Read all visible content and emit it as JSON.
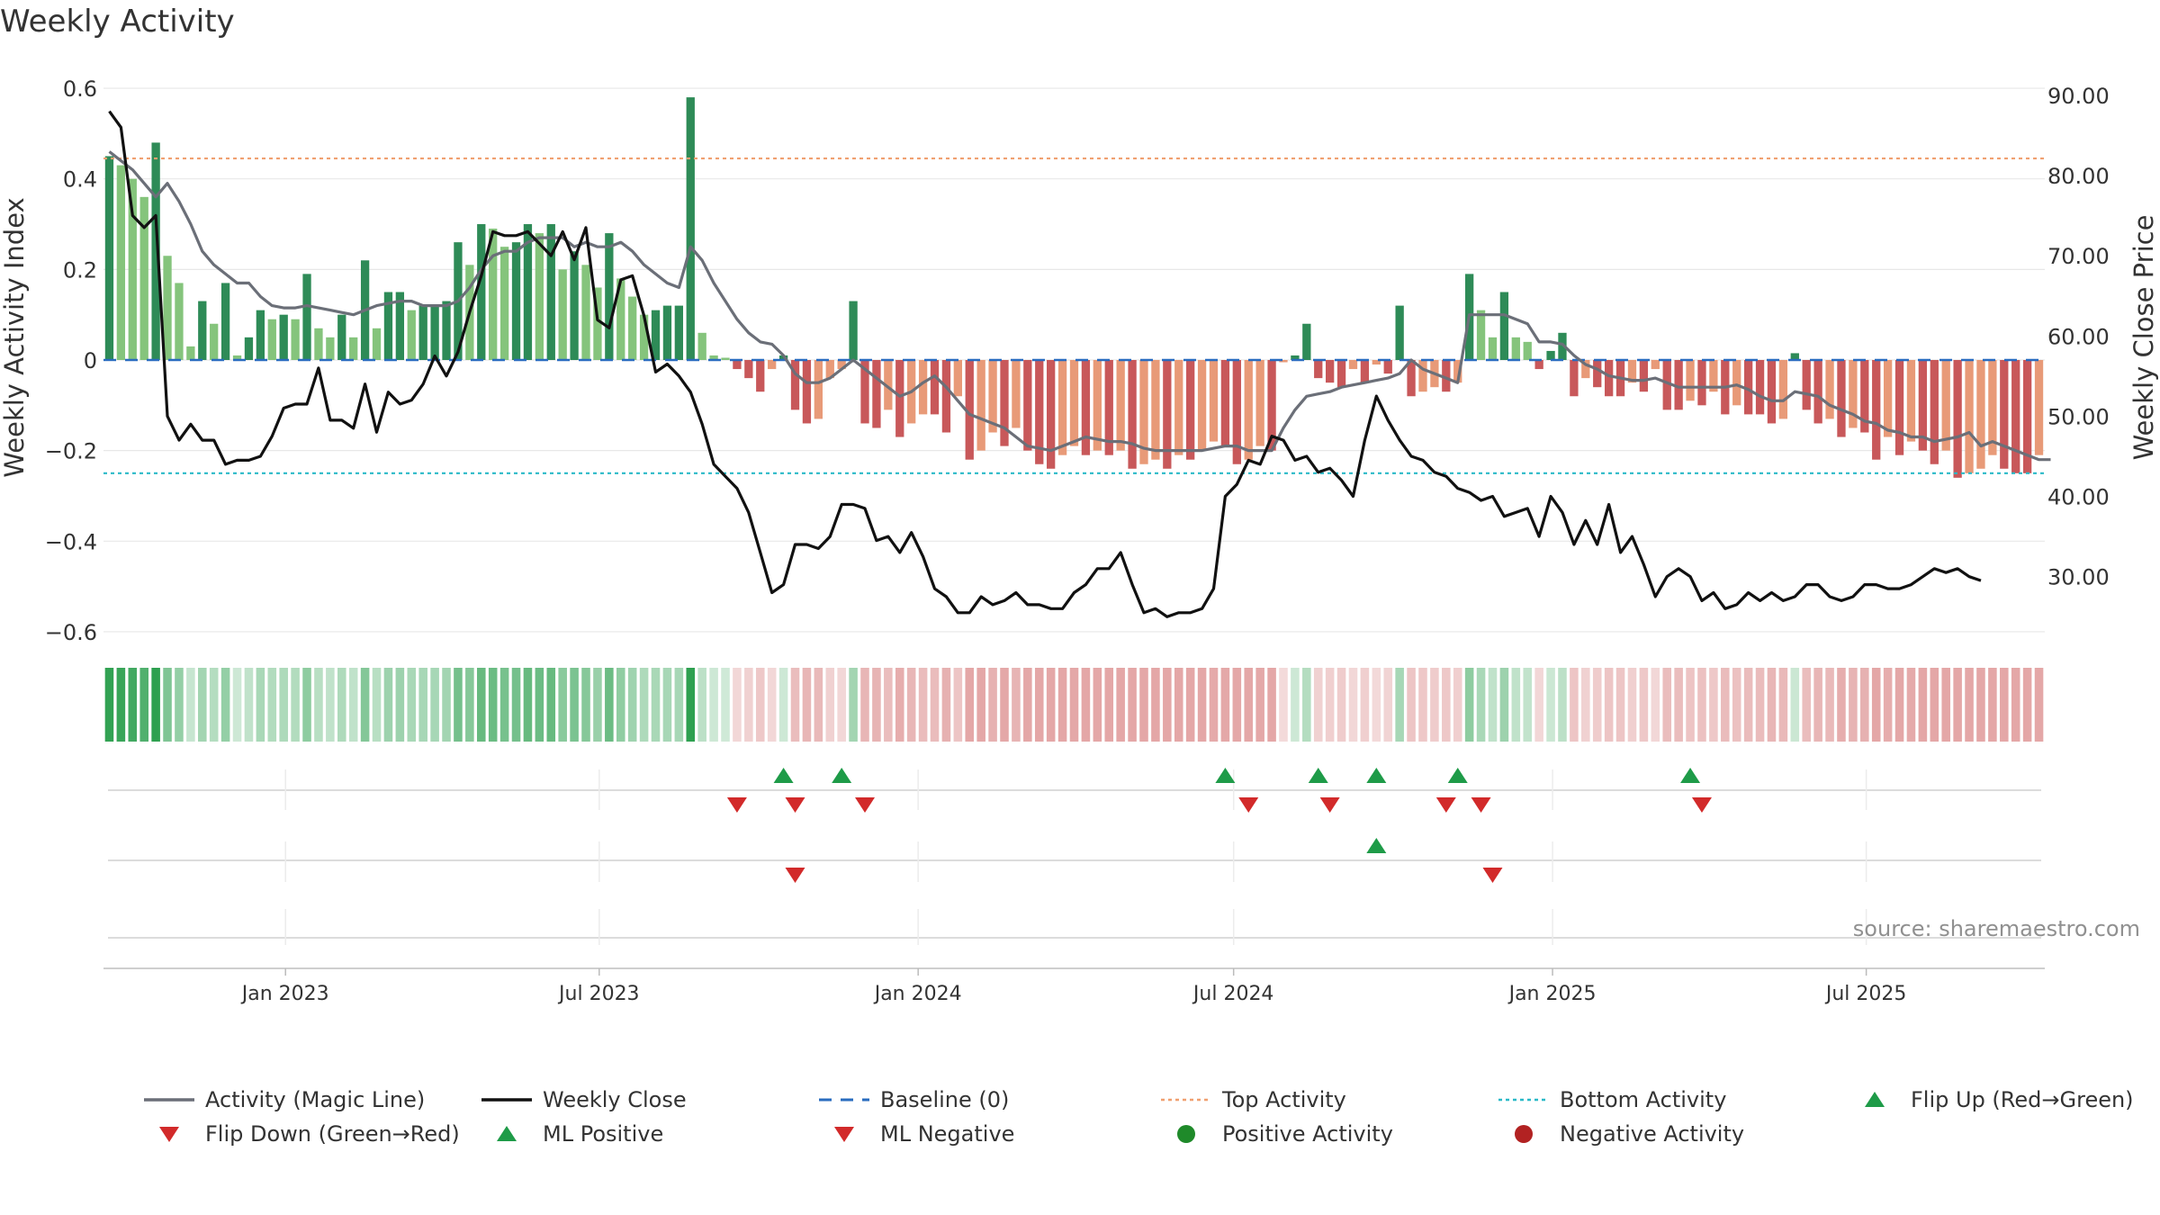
{
  "header": {
    "title": "Weekly Activity"
  },
  "colors": {
    "pos_strong": "#2e8b57",
    "pos_light": "#85c47c",
    "neg_strong": "#c8585a",
    "neg_light": "#e89a78",
    "magic_line": "#6b6f78",
    "close_line": "#111111",
    "baseline": "#2a6cbf",
    "top": "#f0a070",
    "bottom": "#2ab9c8",
    "up_marker": "#1e9b48",
    "down_marker": "#d22a2a"
  },
  "chart_data": {
    "type": "bar",
    "title": "Weekly Activity",
    "ylabel": "Weekly Activity Index",
    "y2label": "Weekly Close Price",
    "ylim": [
      -0.62,
      0.62
    ],
    "y2lim": [
      22,
      92
    ],
    "y_ticks": [
      0.6,
      0.4,
      0.2,
      0,
      -0.2,
      -0.4,
      -0.6
    ],
    "y_tick_labels": [
      "0.6",
      "0.4",
      "0.2",
      "0",
      "−0.2",
      "−0.4",
      "−0.6"
    ],
    "y2_ticks": [
      90,
      80,
      70,
      60,
      50,
      40,
      30
    ],
    "y2_tick_labels": [
      "90.00",
      "80.00",
      "70.00",
      "60.00",
      "50.00",
      "40.00",
      "30.00"
    ],
    "x_start": "2022-09-18",
    "x_end": "2025-10-12",
    "x_tick_dates": [
      "2023-01-01",
      "2023-07-01",
      "2024-01-01",
      "2024-07-01",
      "2025-01-01",
      "2025-07-01"
    ],
    "x_tick_labels": [
      "Jan 2023",
      "Jul 2023",
      "Jan 2024",
      "Jul 2024",
      "Jan 2025",
      "Jul 2025"
    ],
    "top_activity": 0.445,
    "bottom_activity": -0.25,
    "activity": [
      0.45,
      0.43,
      0.4,
      0.36,
      0.48,
      0.23,
      0.17,
      0.03,
      0.13,
      0.08,
      0.17,
      0.01,
      0.05,
      0.11,
      0.09,
      0.1,
      0.09,
      0.19,
      0.07,
      0.05,
      0.1,
      0.05,
      0.22,
      0.07,
      0.15,
      0.15,
      0.11,
      0.12,
      0.12,
      0.13,
      0.26,
      0.21,
      0.3,
      0.29,
      0.25,
      0.26,
      0.3,
      0.28,
      0.3,
      0.2,
      0.24,
      0.21,
      0.16,
      0.28,
      0.18,
      0.14,
      0.1,
      0.11,
      0.12,
      0.12,
      0.58,
      0.06,
      0.01,
      0.005,
      -0.02,
      -0.04,
      -0.07,
      -0.02,
      0.01,
      -0.11,
      -0.14,
      -0.13,
      -0.04,
      -0.02,
      0.13,
      -0.14,
      -0.15,
      -0.11,
      -0.17,
      -0.14,
      -0.12,
      -0.12,
      -0.16,
      -0.08,
      -0.22,
      -0.2,
      -0.16,
      -0.19,
      -0.15,
      -0.2,
      -0.23,
      -0.24,
      -0.21,
      -0.19,
      -0.21,
      -0.2,
      -0.21,
      -0.2,
      -0.24,
      -0.23,
      -0.22,
      -0.24,
      -0.21,
      -0.22,
      -0.2,
      -0.18,
      -0.19,
      -0.23,
      -0.22,
      -0.19,
      -0.2,
      -0.005,
      0.01,
      0.08,
      -0.04,
      -0.05,
      -0.06,
      -0.02,
      -0.05,
      -0.01,
      -0.03,
      0.12,
      -0.08,
      -0.07,
      -0.06,
      -0.07,
      -0.05,
      0.19,
      0.11,
      0.05,
      0.15,
      0.05,
      0.04,
      -0.02,
      0.02,
      0.06,
      -0.08,
      -0.04,
      -0.06,
      -0.08,
      -0.08,
      -0.05,
      -0.07,
      -0.02,
      -0.11,
      -0.11,
      -0.09,
      -0.1,
      -0.07,
      -0.12,
      -0.1,
      -0.12,
      -0.12,
      -0.14,
      -0.13,
      0.015,
      -0.11,
      -0.14,
      -0.13,
      -0.17,
      -0.15,
      -0.16,
      -0.22,
      -0.17,
      -0.21,
      -0.18,
      -0.2,
      -0.23,
      -0.2,
      -0.26,
      -0.25,
      -0.24,
      -0.21,
      -0.24,
      -0.25,
      -0.25,
      -0.21
    ],
    "magic_line": [
      0.46,
      0.44,
      0.42,
      0.39,
      0.36,
      0.39,
      0.35,
      0.3,
      0.24,
      0.21,
      0.19,
      0.17,
      0.17,
      0.14,
      0.12,
      0.115,
      0.115,
      0.12,
      0.115,
      0.11,
      0.105,
      0.1,
      0.11,
      0.12,
      0.125,
      0.13,
      0.13,
      0.12,
      0.12,
      0.12,
      0.13,
      0.16,
      0.2,
      0.23,
      0.24,
      0.24,
      0.26,
      0.27,
      0.27,
      0.27,
      0.25,
      0.26,
      0.25,
      0.25,
      0.26,
      0.24,
      0.21,
      0.19,
      0.17,
      0.16,
      0.25,
      0.22,
      0.17,
      0.13,
      0.09,
      0.06,
      0.04,
      0.035,
      0.01,
      -0.03,
      -0.05,
      -0.05,
      -0.04,
      -0.02,
      0.0,
      -0.02,
      -0.04,
      -0.06,
      -0.08,
      -0.07,
      -0.05,
      -0.035,
      -0.06,
      -0.09,
      -0.12,
      -0.13,
      -0.14,
      -0.15,
      -0.17,
      -0.19,
      -0.195,
      -0.2,
      -0.19,
      -0.18,
      -0.17,
      -0.175,
      -0.18,
      -0.18,
      -0.185,
      -0.195,
      -0.2,
      -0.2,
      -0.2,
      -0.2,
      -0.2,
      -0.195,
      -0.19,
      -0.19,
      -0.2,
      -0.2,
      -0.2,
      -0.15,
      -0.11,
      -0.08,
      -0.075,
      -0.07,
      -0.06,
      -0.055,
      -0.05,
      -0.045,
      -0.04,
      -0.03,
      0.0,
      -0.02,
      -0.03,
      -0.04,
      -0.05,
      0.1,
      0.1,
      0.1,
      0.1,
      0.09,
      0.08,
      0.04,
      0.04,
      0.035,
      0.01,
      -0.01,
      -0.02,
      -0.035,
      -0.04,
      -0.045,
      -0.045,
      -0.04,
      -0.05,
      -0.06,
      -0.06,
      -0.06,
      -0.06,
      -0.06,
      -0.055,
      -0.065,
      -0.08,
      -0.09,
      -0.09,
      -0.07,
      -0.075,
      -0.08,
      -0.1,
      -0.11,
      -0.12,
      -0.135,
      -0.14,
      -0.155,
      -0.16,
      -0.17,
      -0.17,
      -0.18,
      -0.175,
      -0.17,
      -0.16,
      -0.19,
      -0.18,
      -0.19,
      -0.2,
      -0.21,
      -0.22,
      -0.22
    ],
    "weekly_close": [
      88,
      86,
      75,
      73.5,
      75,
      50,
      47,
      49,
      47,
      47,
      44,
      44.5,
      44.5,
      45,
      47.5,
      51,
      51.5,
      51.5,
      56,
      49.5,
      49.5,
      48.5,
      54,
      48,
      53,
      51.5,
      52,
      54,
      57.5,
      55,
      58,
      63,
      67.5,
      73,
      72.5,
      72.5,
      73,
      71.5,
      70,
      73,
      69.5,
      73.5,
      62,
      61,
      67,
      67.5,
      62.5,
      55.5,
      56.5,
      55,
      53,
      49,
      44,
      42.5,
      41,
      38,
      33,
      28,
      29,
      34,
      34,
      33.5,
      35,
      39,
      39,
      38.5,
      34.5,
      35,
      33,
      35.5,
      32.5,
      28.5,
      27.5,
      25.5,
      25.5,
      27.5,
      26.5,
      27,
      28,
      26.5,
      26.5,
      26,
      26,
      28,
      29,
      31,
      31,
      33,
      29,
      25.5,
      26,
      25,
      25.5,
      25.5,
      26,
      28.5,
      40,
      41.5,
      44.5,
      44,
      47.5,
      47,
      44.5,
      45,
      43,
      43.5,
      42,
      40,
      47,
      52.5,
      49.5,
      47,
      45,
      44.5,
      43,
      42.5,
      41,
      40.5,
      39.5,
      40,
      37.5,
      38,
      38.5,
      35,
      40,
      38,
      34,
      37,
      34,
      39,
      33,
      35,
      31.5,
      27.5,
      30,
      31,
      30,
      27,
      28,
      26,
      26.5,
      28,
      27,
      28,
      27,
      27.5,
      29,
      29,
      27.5,
      27,
      27.5,
      29,
      29,
      28.5,
      28.5,
      29,
      30,
      31,
      30.5,
      31,
      30,
      29.5
    ],
    "flip_up_idx": [
      58,
      63,
      96,
      104,
      109,
      116,
      136
    ],
    "flip_down_idx": [
      54,
      59,
      65,
      98,
      105,
      115,
      118,
      137
    ],
    "ml_positive_idx": [
      109
    ],
    "ml_negative_idx": [
      59,
      119
    ],
    "source": "source: sharemaestro.com"
  },
  "legend": [
    {
      "label": "Activity (Magic Line)",
      "symbol": "solid-gray-line"
    },
    {
      "label": "Weekly Close",
      "symbol": "solid-black-line"
    },
    {
      "label": "Baseline (0)",
      "symbol": "dashed-blue-line"
    },
    {
      "label": "Top Activity",
      "symbol": "dotted-orange-line"
    },
    {
      "label": "Bottom Activity",
      "symbol": "dotted-cyan-line"
    },
    {
      "label": "Flip Up (Red→Green)",
      "symbol": "green-up-triangle"
    },
    {
      "label": "Flip Down (Green→Red)",
      "symbol": "red-down-triangle"
    },
    {
      "label": "ML Positive",
      "symbol": "green-up-triangle"
    },
    {
      "label": "ML Negative",
      "symbol": "red-down-triangle"
    },
    {
      "label": "Positive Activity",
      "symbol": "green-circle"
    },
    {
      "label": "Negative Activity",
      "symbol": "red-circle"
    }
  ]
}
